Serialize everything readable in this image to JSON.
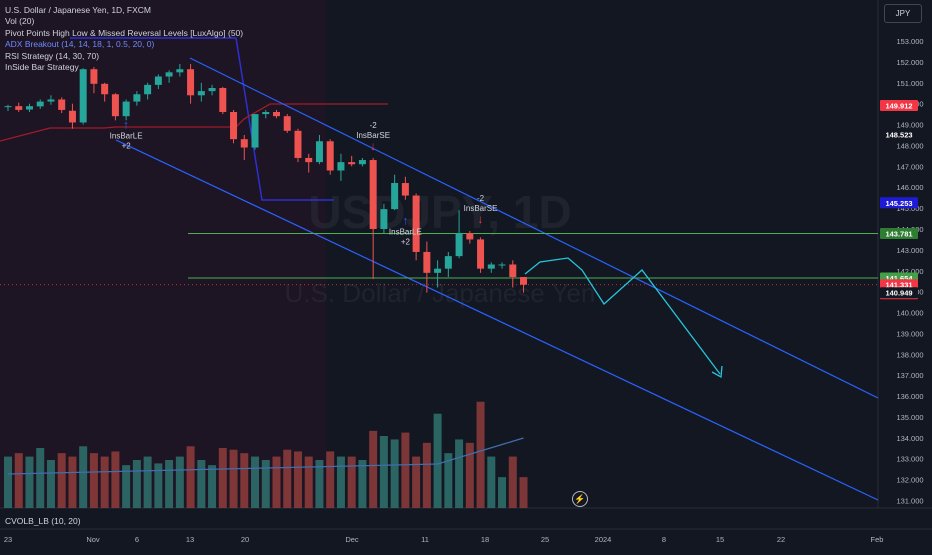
{
  "legend": {
    "symbol": "U.S. Dollar / Japanese Yen, 1D, FXCM",
    "vol": "Vol (20)",
    "pivot": "Pivot Points High Low & Missed Reversal Levels [LuxAlgo] (50)",
    "adx": "ADX Breakout (14, 14, 18, 1, 0.5, 20, 0)",
    "rsi": "RSI Strategy (14, 30, 70)",
    "insidebar": "InSide Bar Strategy"
  },
  "currency_button": "JPY",
  "bottom_indicator": "CVOLB_LB (10, 20)",
  "watermark": {
    "ticker": "USDJPY, 1D",
    "name": "U.S. Dollar / Japanese Yen"
  },
  "colors": {
    "up": "#26a69a",
    "down": "#ef5350",
    "channel": "#2962ff",
    "projection": "#26c6da",
    "level": "#4caf50",
    "pivot_red": "#b71c1c"
  },
  "chart_data": {
    "type": "candlestick",
    "y_axis": {
      "ticks": [
        153.0,
        152.0,
        151.0,
        150.0,
        149.0,
        148.0,
        147.0,
        146.0,
        145.0,
        144.0,
        143.0,
        142.0,
        141.0,
        140.0,
        139.0,
        138.0,
        137.0,
        136.0,
        135.0,
        134.0,
        133.0,
        132.0,
        131.0
      ],
      "tick_labels": [
        "153.000",
        "152.000",
        "151.000",
        "150.000",
        "149.000",
        "148.000",
        "147.000",
        "146.000",
        "145.000",
        "144.000",
        "143.000",
        "142.000",
        "141.000",
        "140.000",
        "139.000",
        "138.000",
        "137.000",
        "136.000",
        "135.000",
        "134.000",
        "133.000",
        "132.000",
        "131.000"
      ],
      "range": [
        130.6,
        153.8
      ]
    },
    "x_axis": {
      "labels": [
        "23",
        "Nov",
        "6",
        "13",
        "20",
        "Dec",
        "11",
        "18",
        "25",
        "2024",
        "8",
        "15",
        "22",
        "Feb"
      ]
    },
    "price_tags": [
      {
        "value": 149.912,
        "label": "149.912",
        "color": "#f23645",
        "text": "#ffffff"
      },
      {
        "value": 148.523,
        "label": "148.523",
        "color": "#131722",
        "text": "#ffffff"
      },
      {
        "value": 145.253,
        "label": "145.253",
        "color": "#1e1bd6",
        "text": "#ffffff"
      },
      {
        "value": 143.781,
        "label": "143.781",
        "color": "#2e7d32",
        "text": "#ffffff"
      },
      {
        "value": 141.654,
        "label": "141.654",
        "color": "#43a047",
        "text": "#ffffff"
      },
      {
        "value": 141.331,
        "label": "141.331",
        "color": "#f23645",
        "text": "#ffffff",
        "sub": "19:20:35"
      },
      {
        "value": 140.949,
        "label": "140.949",
        "color": "#131722",
        "text": "#ffffff"
      }
    ],
    "candles": [
      {
        "d": "Oct 20",
        "o": 149.85,
        "h": 149.95,
        "l": 149.65,
        "c": 149.88
      },
      {
        "d": "Oct 23",
        "o": 149.88,
        "h": 150.05,
        "l": 149.6,
        "c": 149.7
      },
      {
        "d": "Oct 24",
        "o": 149.72,
        "h": 150.0,
        "l": 149.6,
        "c": 149.88
      },
      {
        "d": "Oct 25",
        "o": 149.87,
        "h": 150.2,
        "l": 149.75,
        "c": 150.1
      },
      {
        "d": "Oct 26",
        "o": 150.1,
        "h": 150.4,
        "l": 149.95,
        "c": 150.2
      },
      {
        "d": "Oct 27",
        "o": 150.2,
        "h": 150.3,
        "l": 149.55,
        "c": 149.7
      },
      {
        "d": "Oct 30",
        "o": 149.66,
        "h": 150.0,
        "l": 148.8,
        "c": 149.1
      },
      {
        "d": "Oct 31",
        "o": 149.1,
        "h": 151.7,
        "l": 149.0,
        "c": 151.65
      },
      {
        "d": "Nov 1",
        "o": 151.65,
        "h": 151.75,
        "l": 150.5,
        "c": 150.95
      },
      {
        "d": "Nov 2",
        "o": 150.95,
        "h": 151.0,
        "l": 150.1,
        "c": 150.45
      },
      {
        "d": "Nov 3",
        "o": 150.45,
        "h": 150.5,
        "l": 149.2,
        "c": 149.4
      },
      {
        "d": "Nov 6",
        "o": 149.4,
        "h": 150.2,
        "l": 149.2,
        "c": 150.1
      },
      {
        "d": "Nov 7",
        "o": 150.1,
        "h": 150.6,
        "l": 149.9,
        "c": 150.45
      },
      {
        "d": "Nov 8",
        "o": 150.45,
        "h": 151.0,
        "l": 150.2,
        "c": 150.9
      },
      {
        "d": "Nov 9",
        "o": 150.9,
        "h": 151.4,
        "l": 150.7,
        "c": 151.3
      },
      {
        "d": "Nov 10",
        "o": 151.3,
        "h": 151.6,
        "l": 151.0,
        "c": 151.5
      },
      {
        "d": "Nov 13",
        "o": 151.5,
        "h": 151.9,
        "l": 151.3,
        "c": 151.65
      },
      {
        "d": "Nov 14",
        "o": 151.65,
        "h": 151.9,
        "l": 150.0,
        "c": 150.4
      },
      {
        "d": "Nov 15",
        "o": 150.4,
        "h": 151.0,
        "l": 150.1,
        "c": 150.6
      },
      {
        "d": "Nov 16",
        "o": 150.6,
        "h": 150.9,
        "l": 150.4,
        "c": 150.75
      },
      {
        "d": "Nov 17",
        "o": 150.75,
        "h": 150.8,
        "l": 149.5,
        "c": 149.6
      },
      {
        "d": "Nov 20",
        "o": 149.6,
        "h": 149.7,
        "l": 148.1,
        "c": 148.3
      },
      {
        "d": "Nov 21",
        "o": 148.3,
        "h": 148.5,
        "l": 147.3,
        "c": 147.9
      },
      {
        "d": "Nov 22",
        "o": 147.9,
        "h": 149.5,
        "l": 147.8,
        "c": 149.5
      },
      {
        "d": "Nov 23",
        "o": 149.5,
        "h": 149.7,
        "l": 149.3,
        "c": 149.6
      },
      {
        "d": "Nov 24",
        "o": 149.6,
        "h": 149.7,
        "l": 149.3,
        "c": 149.4
      },
      {
        "d": "Nov 27",
        "o": 149.4,
        "h": 149.5,
        "l": 148.6,
        "c": 148.7
      },
      {
        "d": "Nov 28",
        "o": 148.7,
        "h": 148.8,
        "l": 147.2,
        "c": 147.4
      },
      {
        "d": "Nov 29",
        "o": 147.4,
        "h": 147.6,
        "l": 146.7,
        "c": 147.2
      },
      {
        "d": "Nov 30",
        "o": 147.2,
        "h": 148.5,
        "l": 147.1,
        "c": 148.2
      },
      {
        "d": "Dec 1",
        "o": 148.2,
        "h": 148.3,
        "l": 146.6,
        "c": 146.8
      },
      {
        "d": "Dec 4",
        "o": 146.8,
        "h": 147.6,
        "l": 146.3,
        "c": 147.2
      },
      {
        "d": "Dec 5",
        "o": 147.2,
        "h": 147.5,
        "l": 147.0,
        "c": 147.1
      },
      {
        "d": "Dec 6",
        "o": 147.1,
        "h": 147.4,
        "l": 147.0,
        "c": 147.3
      },
      {
        "d": "Dec 7",
        "o": 147.3,
        "h": 147.4,
        "l": 141.6,
        "c": 144.0
      },
      {
        "d": "Dec 8",
        "o": 144.0,
        "h": 145.2,
        "l": 143.8,
        "c": 144.95
      },
      {
        "d": "Dec 11",
        "o": 144.95,
        "h": 146.6,
        "l": 144.9,
        "c": 146.2
      },
      {
        "d": "Dec 12",
        "o": 146.2,
        "h": 146.5,
        "l": 145.4,
        "c": 145.6
      },
      {
        "d": "Dec 13",
        "o": 145.6,
        "h": 145.7,
        "l": 142.5,
        "c": 142.9
      },
      {
        "d": "Dec 14",
        "o": 142.9,
        "h": 143.4,
        "l": 140.95,
        "c": 141.9
      },
      {
        "d": "Dec 15",
        "o": 141.9,
        "h": 142.5,
        "l": 141.2,
        "c": 142.1
      },
      {
        "d": "Dec 18",
        "o": 142.1,
        "h": 142.9,
        "l": 141.7,
        "c": 142.7
      },
      {
        "d": "Dec 19",
        "o": 142.7,
        "h": 144.9,
        "l": 142.6,
        "c": 143.8
      },
      {
        "d": "Dec 20",
        "o": 143.8,
        "h": 143.9,
        "l": 143.3,
        "c": 143.5
      },
      {
        "d": "Dec 21",
        "o": 143.5,
        "h": 143.6,
        "l": 141.9,
        "c": 142.1
      },
      {
        "d": "Dec 22",
        "o": 142.1,
        "h": 142.4,
        "l": 141.9,
        "c": 142.3
      },
      {
        "d": "Dec 26",
        "o": 142.3,
        "h": 142.4,
        "l": 142.1,
        "c": 142.3
      },
      {
        "d": "Dec 27",
        "o": 142.3,
        "h": 142.5,
        "l": 141.2,
        "c": 141.7
      },
      {
        "d": "Dec 28",
        "o": 141.7,
        "h": 141.7,
        "l": 140.95,
        "c": 141.33
      }
    ],
    "volume": {
      "colors": [
        "up",
        "down",
        "up",
        "up",
        "up",
        "down",
        "down",
        "up",
        "down",
        "down",
        "down",
        "up",
        "up",
        "up",
        "up",
        "up",
        "up",
        "down",
        "up",
        "up",
        "down",
        "down",
        "down",
        "up",
        "up",
        "down",
        "down",
        "down",
        "down",
        "up",
        "down",
        "up",
        "down",
        "up",
        "down",
        "up",
        "up",
        "down",
        "down",
        "down",
        "up",
        "up",
        "up",
        "down",
        "down",
        "up",
        "up",
        "down",
        "down"
      ],
      "values": [
        30,
        32,
        30,
        35,
        28,
        32,
        30,
        36,
        32,
        30,
        33,
        25,
        28,
        30,
        26,
        28,
        30,
        36,
        28,
        25,
        35,
        34,
        32,
        30,
        28,
        30,
        34,
        33,
        30,
        28,
        33,
        30,
        30,
        28,
        45,
        42,
        40,
        44,
        30,
        38,
        55,
        32,
        40,
        38,
        62,
        30,
        18,
        30,
        18
      ]
    },
    "annotations": [
      {
        "type": "signal",
        "text": "InsBarLE",
        "qty": "+2",
        "dir": "long",
        "date": "Nov 6",
        "price": 149.2
      },
      {
        "type": "signal",
        "text": "InsBarSE",
        "qty": "-2",
        "dir": "short",
        "date": "Dec 7",
        "price": 147.4
      },
      {
        "type": "signal",
        "text": "InsBarLE",
        "qty": "+2",
        "dir": "long",
        "date": "Dec 12",
        "price": 144.6
      },
      {
        "type": "signal",
        "text": "InsBarSE",
        "qty": "-2",
        "dir": "short",
        "date": "Dec 21",
        "price": 143.9
      }
    ],
    "levels": [
      143.781,
      141.654
    ],
    "grid": false,
    "legend": "top-left"
  }
}
